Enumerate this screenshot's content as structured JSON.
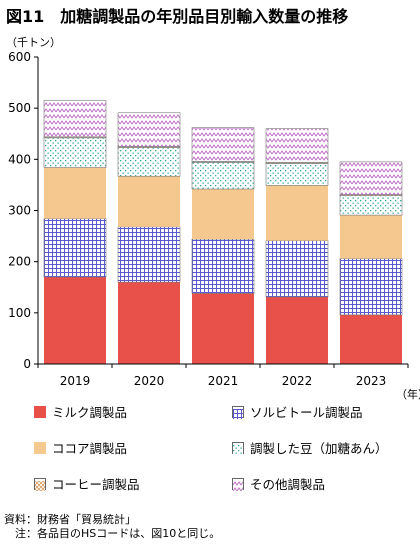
{
  "title": "図11　加糖調製品の年別品目別輸入数量の推移",
  "chart_data": {
    "type": "bar",
    "stacked": true,
    "y_unit_label": "（千トン）",
    "x_unit_label": "（年）",
    "ylim": [
      0,
      600
    ],
    "yticks": [
      0,
      100,
      200,
      300,
      400,
      500,
      600
    ],
    "categories": [
      "2019",
      "2020",
      "2021",
      "2022",
      "2023"
    ],
    "series": [
      {
        "name": "ミルク調製品",
        "color": "#e8504a",
        "pattern": "solid",
        "values": [
          170,
          160,
          138,
          131,
          96
        ]
      },
      {
        "name": "ソルビトール調製品",
        "color": "#6a6ad8",
        "pattern": "grid",
        "values": [
          114,
          108,
          106,
          110,
          110
        ]
      },
      {
        "name": "ココア調製品",
        "color": "#f5c890",
        "pattern": "solid",
        "values": [
          100,
          99,
          98,
          108,
          85
        ]
      },
      {
        "name": "調製した豆（加糖あん）",
        "color": "#2fa69a",
        "pattern": "dots",
        "values": [
          58,
          56,
          52,
          43,
          38
        ]
      },
      {
        "name": "コーヒー調製品",
        "color": "#d89a5a",
        "pattern": "hatch",
        "values": [
          2,
          2,
          2,
          2,
          2
        ]
      },
      {
        "name": "その他調製品",
        "color": "#c070c8",
        "pattern": "zigzag",
        "values": [
          71,
          66,
          66,
          66,
          64
        ]
      }
    ],
    "grid": false,
    "legend_position": "bottom"
  },
  "notes": {
    "source": "資料：財務省「貿易統計」",
    "note": "　注：各品目のHSコードは、図10と同じ。"
  }
}
